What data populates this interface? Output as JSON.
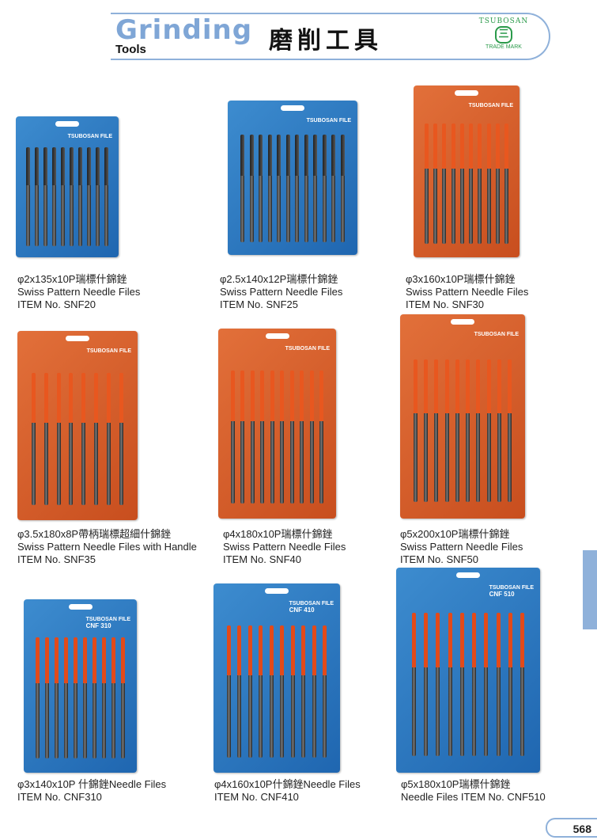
{
  "header": {
    "title_en": "Grinding",
    "subtitle_en": "Tools",
    "title_cn": "磨削工具",
    "logo": {
      "brand": "TSUBOSAN",
      "mark": "三",
      "trade_mark": "TRADE MARK"
    }
  },
  "products": [
    {
      "spec": "φ2x135x10P瑞標什錦銼",
      "name": "Swiss Pattern Needle Files",
      "item": "ITEM No. SNF20",
      "package_label": "TSUBOSAN FILE",
      "package_code": "",
      "color": "blue",
      "file_count": 10
    },
    {
      "spec": "φ2.5x140x12P瑞標什錦銼",
      "name": "Swiss Pattern Needle Files",
      "item": "ITEM No. SNF25",
      "package_label": "TSUBOSAN FILE",
      "package_code": "",
      "color": "blue",
      "file_count": 12
    },
    {
      "spec": "φ3x160x10P瑞標什錦銼",
      "name": "Swiss Pattern Needle Files",
      "item": "ITEM No. SNF30",
      "package_label": "TSUBOSAN FILE",
      "package_code": "",
      "color": "orange",
      "file_count": 10
    },
    {
      "spec": "φ3.5x180x8P帶柄瑞標超細什錦銼",
      "name": "Swiss Pattern Needle Files with Handle",
      "item": "ITEM No. SNF35",
      "package_label": "TSUBOSAN FILE",
      "package_code": "",
      "color": "orange",
      "file_count": 8
    },
    {
      "spec": "φ4x180x10P瑞標什錦銼",
      "name": "Swiss Pattern Needle Files",
      "item": "ITEM No. SNF40",
      "package_label": "TSUBOSAN FILE",
      "package_code": "",
      "color": "orange",
      "file_count": 10
    },
    {
      "spec": "φ5x200x10P瑞標什錦銼",
      "name": "Swiss Pattern Needle Files",
      "item": "ITEM No. SNF50",
      "package_label": "TSUBOSAN FILE",
      "package_code": "",
      "color": "orange",
      "file_count": 10
    },
    {
      "spec": "φ3x140x10P 什錦銼Needle Files",
      "name": "",
      "item": "ITEM No. CNF310",
      "package_label": "TSUBOSAN FILE",
      "package_code": "CNF 310",
      "color": "blue",
      "file_count": 10
    },
    {
      "spec": "φ4x160x10P什錦銼Needle Files",
      "name": "",
      "item": "ITEM No. CNF410",
      "package_label": "TSUBOSAN FILE",
      "package_code": "CNF 410",
      "color": "blue",
      "file_count": 10
    },
    {
      "spec": "φ5x180x10P瑞標什錦銼",
      "name": "Needle Files ITEM No. CNF510",
      "item": "",
      "package_label": "TSUBOSAN FILE",
      "package_code": "CNF 510",
      "color": "blue",
      "file_count": 10
    }
  ],
  "page_number": "568"
}
